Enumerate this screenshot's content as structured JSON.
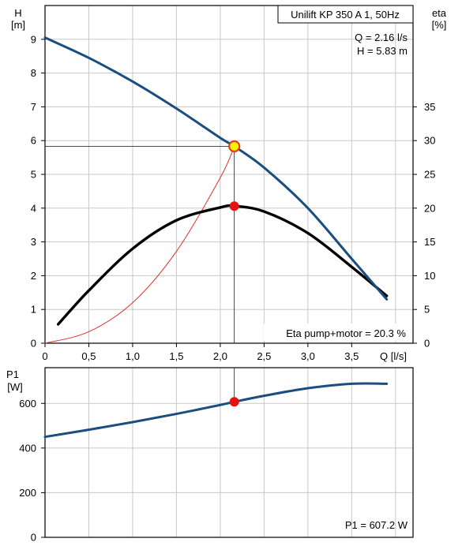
{
  "chart_data": [
    {
      "type": "line",
      "title": "Unilift KP 350 A 1, 50Hz",
      "xlabel": "Q [l/s]",
      "ylabel": "H [m]",
      "ylabel_top": "H",
      "ylabel_unit": "[m]",
      "ylabel2": "eta [%]",
      "ylabel2_top": "eta",
      "ylabel2_unit": "[%]",
      "xlim": [
        0,
        4.2
      ],
      "ylim": [
        0,
        10
      ],
      "ylim2": [
        0,
        50
      ],
      "x_ticks": [
        "0",
        "0,5",
        "1,0",
        "1,5",
        "2,0",
        "2,5",
        "3,0",
        "3,5"
      ],
      "x_tick_values": [
        0,
        0.5,
        1.0,
        1.5,
        2.0,
        2.5,
        3.0,
        3.5
      ],
      "y_ticks": [
        "0",
        "1",
        "2",
        "3",
        "4",
        "5",
        "6",
        "7",
        "8",
        "9"
      ],
      "y_tick_values": [
        0,
        1,
        2,
        3,
        4,
        5,
        6,
        7,
        8,
        9
      ],
      "y2_ticks": [
        "0",
        "5",
        "10",
        "15",
        "20",
        "25",
        "30",
        "35"
      ],
      "y2_tick_values": [
        0,
        5,
        10,
        15,
        20,
        25,
        30,
        35
      ],
      "grid": true,
      "duty_point": {
        "q": 2.16,
        "h": 5.83,
        "eta": 20.3
      },
      "annotations": {
        "q_label": "Q = 2.16 l/s",
        "h_label": "H = 5.83 m",
        "eta_label": "Eta pump+motor = 20.3 %"
      },
      "series": [
        {
          "axis": "left",
          "color": "#1a4d80",
          "x": [
            0,
            0.5,
            1.0,
            1.5,
            2.0,
            2.16,
            2.5,
            3.0,
            3.5,
            3.9
          ],
          "values": [
            9.05,
            8.45,
            7.75,
            6.95,
            6.08,
            5.83,
            5.2,
            4.0,
            2.5,
            1.3
          ]
        },
        {
          "axis": "right",
          "color": "#000000",
          "x": [
            0.15,
            0.5,
            1.0,
            1.5,
            2.0,
            2.16,
            2.5,
            3.0,
            3.5,
            3.9
          ],
          "values": [
            2.8,
            7.8,
            14.0,
            18.2,
            20.1,
            20.3,
            19.5,
            16.3,
            11.3,
            7.0
          ]
        },
        {
          "axis": "left",
          "color": "#e03030",
          "x": [
            0,
            0.5,
            1.0,
            1.5,
            2.0,
            2.16
          ],
          "values": [
            0,
            0.34,
            1.2,
            2.72,
            4.9,
            5.83
          ]
        }
      ]
    },
    {
      "type": "line",
      "ylabel": "P1 [W]",
      "ylabel_top": "P1",
      "ylabel_unit": "[W]",
      "xlim": [
        0,
        4.2
      ],
      "ylim": [
        0,
        760
      ],
      "y_ticks": [
        "0",
        "200",
        "400",
        "600"
      ],
      "y_tick_values": [
        0,
        200,
        400,
        600
      ],
      "grid": true,
      "duty_point": {
        "q": 2.16,
        "p1": 607.2
      },
      "annotations": {
        "p1_label": "P1 = 607.2 W"
      },
      "series": [
        {
          "color": "#1a4d80",
          "x": [
            0,
            0.5,
            1.0,
            1.5,
            2.0,
            2.16,
            2.5,
            3.0,
            3.5,
            3.9
          ],
          "values": [
            450,
            482,
            516,
            553,
            593,
            607,
            634,
            668,
            688,
            688
          ]
        }
      ]
    }
  ]
}
